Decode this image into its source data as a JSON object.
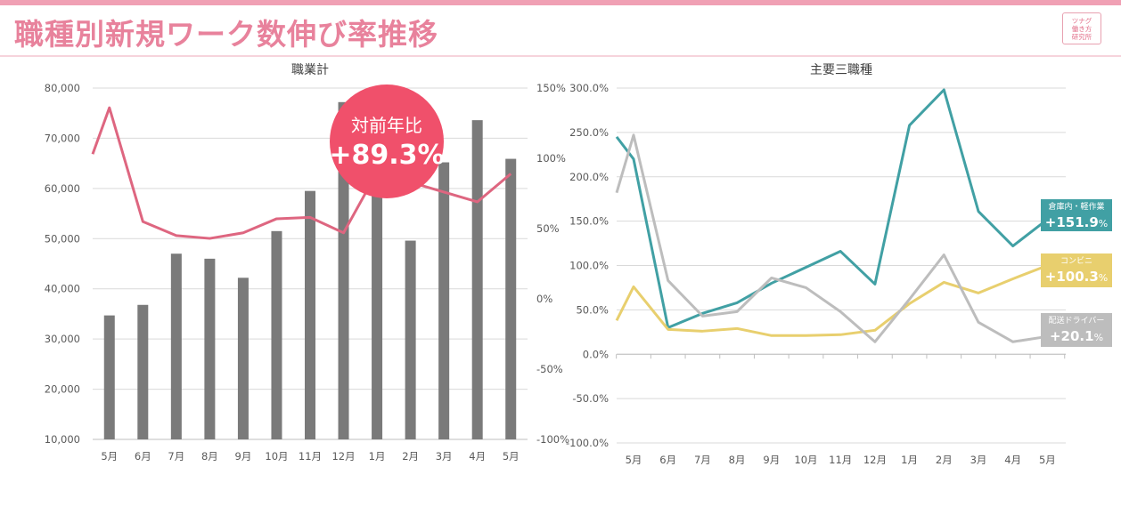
{
  "header": {
    "title": "職種別新規ワーク数伸び率推移",
    "logo_lines": [
      "ツナグ",
      "働き方",
      "研究所"
    ]
  },
  "chart_data": [
    {
      "type": "bar",
      "title": "職業計",
      "categories": [
        "5月",
        "6月",
        "7月",
        "8月",
        "9月",
        "10月",
        "11月",
        "12月",
        "1月",
        "2月",
        "3月",
        "4月",
        "5月"
      ],
      "y_ticks": [
        "10,000",
        "20,000",
        "30,000",
        "40,000",
        "50,000",
        "60,000",
        "70,000",
        "80,000"
      ],
      "y2_ticks": [
        "-100%",
        "-50%",
        "0%",
        "50%",
        "100%",
        "150%"
      ],
      "ylim": [
        10000,
        80000
      ],
      "y2lim": [
        -100,
        150
      ],
      "series": [
        {
          "name": "",
          "kind": "bar",
          "axis": "left",
          "color": "#7a7a7a",
          "values": [
            34700,
            36800,
            47000,
            46000,
            42200,
            51500,
            59500,
            77200,
            64000,
            49600,
            65200,
            73600,
            65900
          ]
        },
        {
          "name": "",
          "kind": "line",
          "axis": "right",
          "color": "#de6680",
          "values": [
            136,
            55,
            45,
            43,
            47,
            57,
            58,
            47,
            90,
            83,
            76,
            69,
            89
          ]
        }
      ],
      "callout": {
        "line1": "対前年比",
        "line2": "+89.3%",
        "color": "#f0506b"
      }
    },
    {
      "type": "line",
      "title": "主要三職種",
      "categories": [
        "5月",
        "6月",
        "7月",
        "8月",
        "9月",
        "10月",
        "11月",
        "12月",
        "1月",
        "2月",
        "3月",
        "4月",
        "5月"
      ],
      "y_ticks": [
        "-100.0%",
        "-50.0%",
        "0.0%",
        "50.0%",
        "100.0%",
        "150.0%",
        "200.0%",
        "250.0%",
        "300.0%"
      ],
      "ylim": [
        -100,
        300
      ],
      "series": [
        {
          "name": "倉庫内・軽作業",
          "color": "#41a0a4",
          "values": [
            220,
            30,
            46,
            58,
            80,
            98,
            116,
            79,
            258,
            298,
            161,
            122,
            152
          ]
        },
        {
          "name": "コンビニ",
          "color": "#e8cf6e",
          "values": [
            76,
            28,
            26,
            29,
            21,
            21,
            22,
            27,
            57,
            81,
            69,
            85,
            100
          ]
        },
        {
          "name": "配送ドライバー",
          "color": "#bdbdbd",
          "values": [
            247,
            83,
            43,
            48,
            86,
            75,
            48,
            14,
            62,
            112,
            36,
            14,
            20
          ]
        }
      ],
      "labels": [
        {
          "name": "倉庫内・軽作業",
          "value": "+151.9",
          "unit": "%",
          "color": "#41a0a4"
        },
        {
          "name": "コンビニ",
          "value": "+100.3",
          "unit": "%",
          "color": "#e8cf6e"
        },
        {
          "name": "配送ドライバー",
          "value": "+20.1",
          "unit": "%",
          "color": "#bdbdbd"
        }
      ]
    }
  ]
}
